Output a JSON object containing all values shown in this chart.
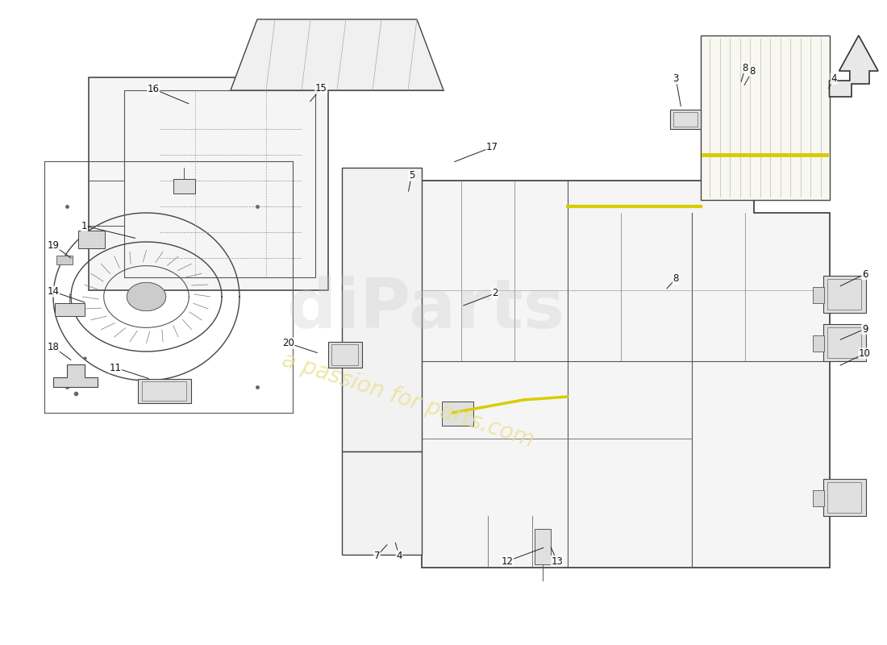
{
  "background_color": "#ffffff",
  "watermark_text": "a passion for parts.com",
  "watermark_color": "#f0e88a",
  "watermark_brand": "diParts",
  "watermark_brand_color": "#cccccc",
  "fig_width": 11.0,
  "fig_height": 8.0,
  "dpi": 100
}
